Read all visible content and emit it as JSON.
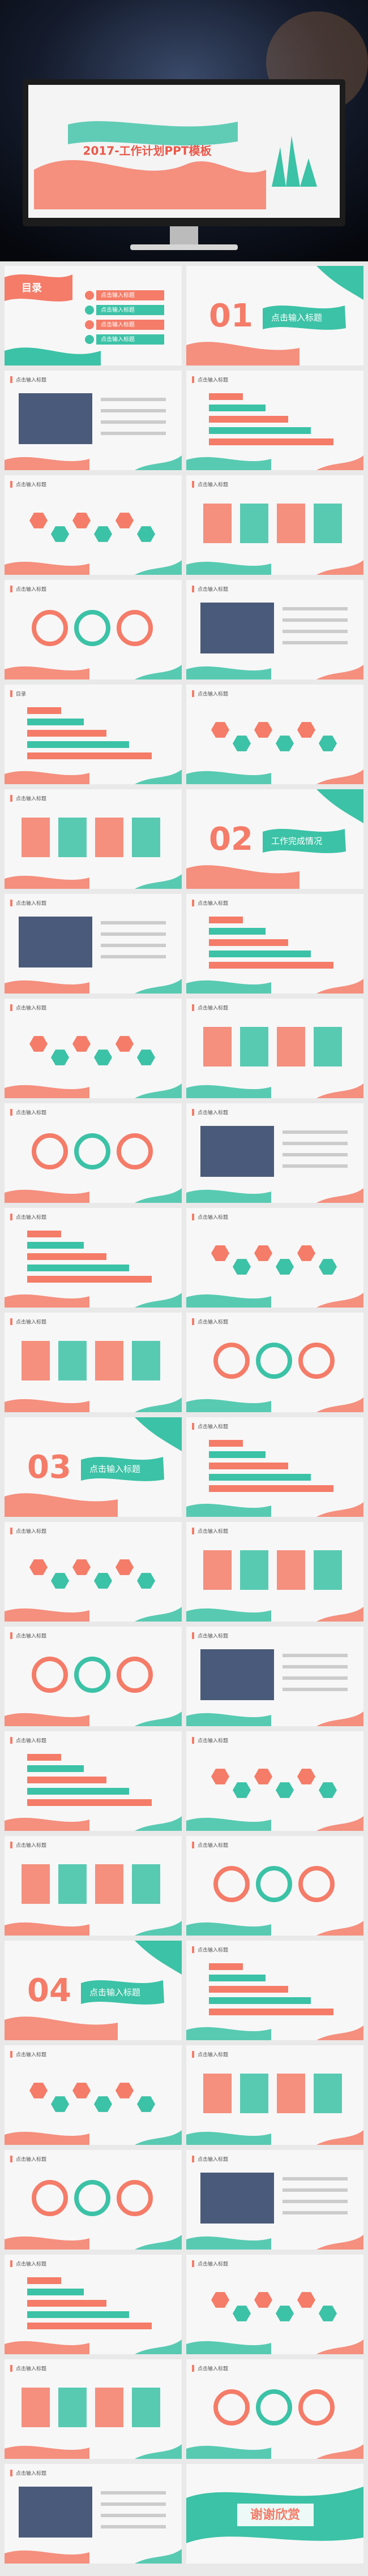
{
  "hero": {
    "title": "2017-工作计划PPT模板"
  },
  "slides": [
    {
      "kind": "toc",
      "title": "目录",
      "items": [
        "点击输入标题",
        "点击输入标题",
        "点击输入标题",
        "点击输入标题"
      ]
    },
    {
      "kind": "section",
      "number": "01",
      "title": "点击输入标题"
    },
    {
      "kind": "content",
      "title": "点击输入标题"
    },
    {
      "kind": "content",
      "title": "点击输入标题"
    },
    {
      "kind": "content",
      "title": "点击输入标题"
    },
    {
      "kind": "content",
      "title": "点击输入标题"
    },
    {
      "kind": "content",
      "title": "点击输入标题"
    },
    {
      "kind": "content",
      "title": "点击输入标题"
    },
    {
      "kind": "content",
      "title": "目录"
    },
    {
      "kind": "content",
      "title": "点击输入标题"
    },
    {
      "kind": "content",
      "title": "点击输入标题"
    },
    {
      "kind": "section",
      "number": "02",
      "title": "工作完成情况"
    },
    {
      "kind": "content",
      "title": "点击输入标题"
    },
    {
      "kind": "content",
      "title": "点击输入标题"
    },
    {
      "kind": "content",
      "title": "点击输入标题"
    },
    {
      "kind": "content",
      "title": "点击输入标题"
    },
    {
      "kind": "content",
      "title": "点击输入标题"
    },
    {
      "kind": "content",
      "title": "点击输入标题"
    },
    {
      "kind": "content",
      "title": "点击输入标题"
    },
    {
      "kind": "content",
      "title": "点击输入标题"
    },
    {
      "kind": "content",
      "title": "点击输入标题"
    },
    {
      "kind": "content",
      "title": "点击输入标题"
    },
    {
      "kind": "section",
      "number": "03",
      "title": "点击输入标题"
    },
    {
      "kind": "content",
      "title": "点击输入标题"
    },
    {
      "kind": "content",
      "title": "点击输入标题"
    },
    {
      "kind": "content",
      "title": "点击输入标题"
    },
    {
      "kind": "content",
      "title": "点击输入标题"
    },
    {
      "kind": "content",
      "title": "点击输入标题"
    },
    {
      "kind": "content",
      "title": "点击输入标题"
    },
    {
      "kind": "content",
      "title": "点击输入标题"
    },
    {
      "kind": "content",
      "title": "点击输入标题"
    },
    {
      "kind": "content",
      "title": "点击输入标题"
    },
    {
      "kind": "section",
      "number": "04",
      "title": "点击输入标题"
    },
    {
      "kind": "content",
      "title": "点击输入标题"
    },
    {
      "kind": "content",
      "title": "点击输入标题"
    },
    {
      "kind": "content",
      "title": "点击输入标题"
    },
    {
      "kind": "content",
      "title": "点击输入标题"
    },
    {
      "kind": "content",
      "title": "点击输入标题"
    },
    {
      "kind": "content",
      "title": "点击输入标题"
    },
    {
      "kind": "content",
      "title": "点击输入标题"
    },
    {
      "kind": "content",
      "title": "点击输入标题"
    },
    {
      "kind": "content",
      "title": "点击输入标题"
    },
    {
      "kind": "content",
      "title": "点击输入标题"
    },
    {
      "kind": "end",
      "title": "谢谢欣赏"
    }
  ]
}
